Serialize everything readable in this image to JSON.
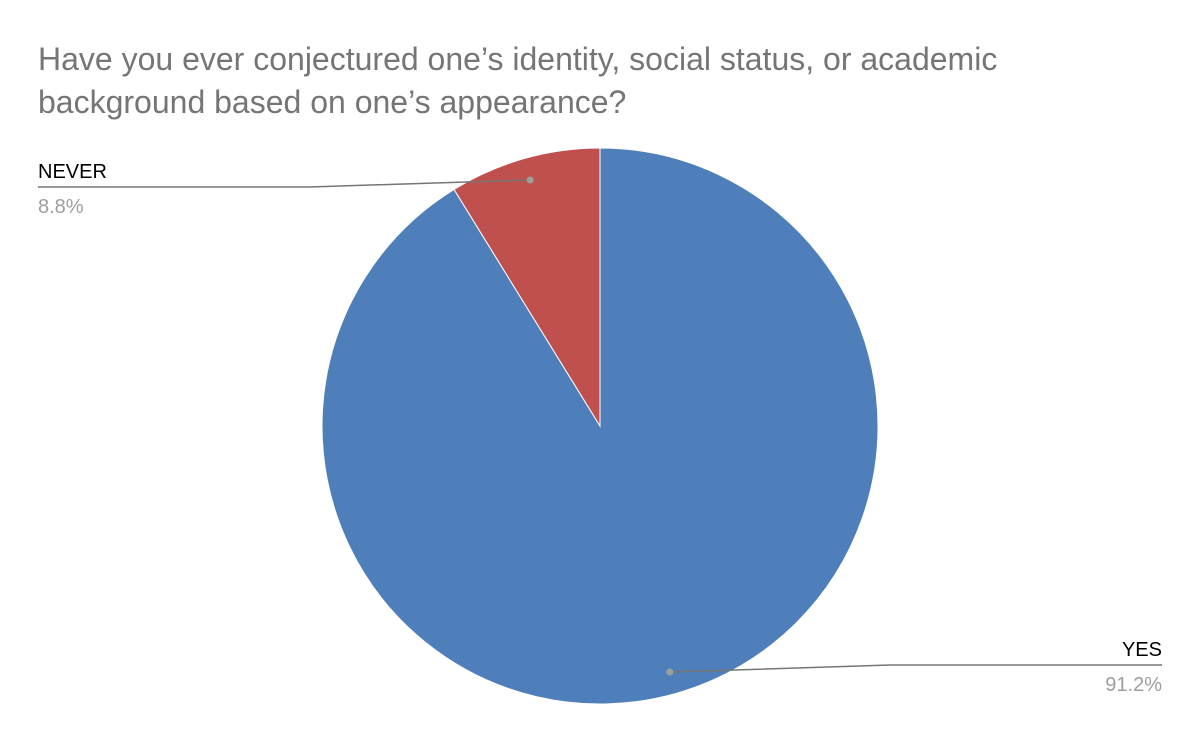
{
  "chart_data": {
    "type": "pie",
    "title": "Have you ever conjectured one’s identity, social status, or academic background based on one’s appearance?",
    "categories": [
      "YES",
      "NEVER"
    ],
    "values": [
      91.2,
      8.8
    ],
    "value_labels": [
      "91.2%",
      "8.8%"
    ],
    "colors": [
      "#4e7fba",
      "#c0504d"
    ]
  }
}
